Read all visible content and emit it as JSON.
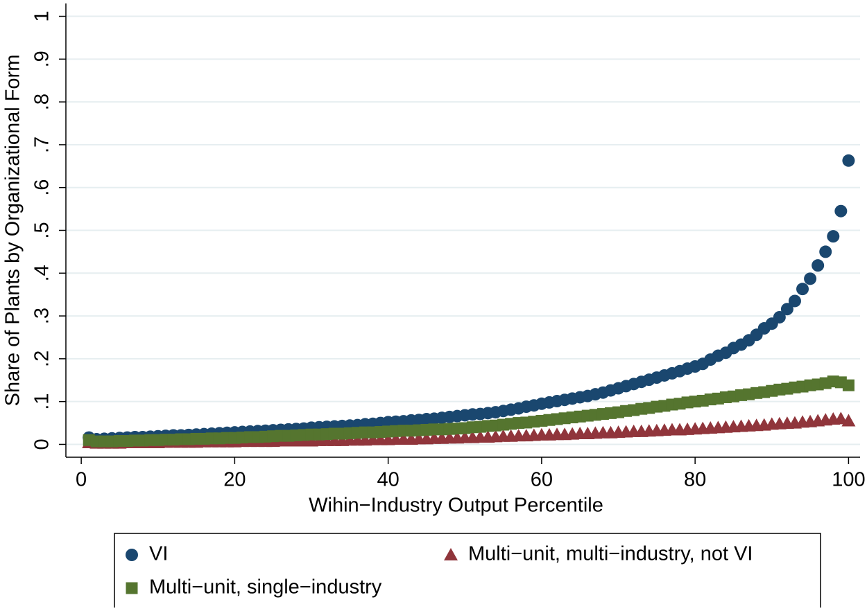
{
  "chart_data": {
    "type": "scatter",
    "ylabel": "Share of Plants by Organizational Form",
    "xlabel": "Wihin−Industry Output Percentile",
    "x": [
      1,
      2,
      3,
      4,
      5,
      6,
      7,
      8,
      9,
      10,
      11,
      12,
      13,
      14,
      15,
      16,
      17,
      18,
      19,
      20,
      21,
      22,
      23,
      24,
      25,
      26,
      27,
      28,
      29,
      30,
      31,
      32,
      33,
      34,
      35,
      36,
      37,
      38,
      39,
      40,
      41,
      42,
      43,
      44,
      45,
      46,
      47,
      48,
      49,
      50,
      51,
      52,
      53,
      54,
      55,
      56,
      57,
      58,
      59,
      60,
      61,
      62,
      63,
      64,
      65,
      66,
      67,
      68,
      69,
      70,
      71,
      72,
      73,
      74,
      75,
      76,
      77,
      78,
      79,
      80,
      81,
      82,
      83,
      84,
      85,
      86,
      87,
      88,
      89,
      90,
      91,
      92,
      93,
      94,
      95,
      96,
      97,
      98,
      99,
      100
    ],
    "series": [
      {
        "name": "VI",
        "color": "#1a476f",
        "marker": "circle",
        "values": [
          0.016,
          0.012,
          0.013,
          0.014,
          0.015,
          0.016,
          0.017,
          0.017,
          0.018,
          0.019,
          0.02,
          0.021,
          0.021,
          0.022,
          0.023,
          0.024,
          0.025,
          0.026,
          0.027,
          0.028,
          0.029,
          0.03,
          0.031,
          0.032,
          0.033,
          0.034,
          0.035,
          0.036,
          0.037,
          0.039,
          0.04,
          0.041,
          0.042,
          0.043,
          0.044,
          0.045,
          0.047,
          0.048,
          0.05,
          0.052,
          0.053,
          0.054,
          0.056,
          0.057,
          0.059,
          0.06,
          0.062,
          0.064,
          0.066,
          0.068,
          0.07,
          0.071,
          0.073,
          0.075,
          0.078,
          0.081,
          0.084,
          0.088,
          0.091,
          0.095,
          0.098,
          0.101,
          0.104,
          0.107,
          0.11,
          0.113,
          0.117,
          0.121,
          0.126,
          0.131,
          0.136,
          0.141,
          0.146,
          0.151,
          0.156,
          0.161,
          0.166,
          0.171,
          0.177,
          0.182,
          0.188,
          0.198,
          0.207,
          0.214,
          0.225,
          0.233,
          0.243,
          0.256,
          0.271,
          0.282,
          0.297,
          0.316,
          0.335,
          0.363,
          0.387,
          0.418,
          0.45,
          0.486,
          0.545,
          0.663
        ]
      },
      {
        "name": "Multi−unit, multi−industry, not VI",
        "color": "#90353b",
        "marker": "triangle",
        "values": [
          0.004,
          0.003,
          0.003,
          0.003,
          0.003,
          0.004,
          0.004,
          0.004,
          0.004,
          0.004,
          0.005,
          0.005,
          0.005,
          0.005,
          0.005,
          0.006,
          0.006,
          0.006,
          0.006,
          0.006,
          0.007,
          0.007,
          0.007,
          0.007,
          0.007,
          0.008,
          0.008,
          0.008,
          0.008,
          0.008,
          0.009,
          0.009,
          0.009,
          0.009,
          0.01,
          0.01,
          0.01,
          0.011,
          0.011,
          0.011,
          0.012,
          0.012,
          0.012,
          0.013,
          0.013,
          0.014,
          0.014,
          0.015,
          0.015,
          0.016,
          0.016,
          0.017,
          0.017,
          0.018,
          0.019,
          0.019,
          0.02,
          0.02,
          0.021,
          0.022,
          0.022,
          0.023,
          0.023,
          0.024,
          0.025,
          0.025,
          0.026,
          0.027,
          0.027,
          0.028,
          0.029,
          0.03,
          0.03,
          0.031,
          0.032,
          0.033,
          0.034,
          0.034,
          0.035,
          0.036,
          0.037,
          0.038,
          0.039,
          0.04,
          0.041,
          0.042,
          0.043,
          0.044,
          0.045,
          0.047,
          0.048,
          0.049,
          0.05,
          0.052,
          0.053,
          0.055,
          0.057,
          0.059,
          0.06,
          0.055
        ]
      },
      {
        "name": "Multi−unit, single−industry",
        "color": "#55752f",
        "marker": "square",
        "values": [
          0.01,
          0.007,
          0.007,
          0.007,
          0.008,
          0.008,
          0.009,
          0.009,
          0.01,
          0.01,
          0.011,
          0.011,
          0.012,
          0.012,
          0.013,
          0.013,
          0.014,
          0.014,
          0.015,
          0.015,
          0.016,
          0.017,
          0.017,
          0.018,
          0.019,
          0.02,
          0.02,
          0.021,
          0.022,
          0.023,
          0.023,
          0.024,
          0.025,
          0.025,
          0.026,
          0.027,
          0.028,
          0.028,
          0.029,
          0.03,
          0.031,
          0.032,
          0.032,
          0.033,
          0.034,
          0.035,
          0.035,
          0.036,
          0.037,
          0.038,
          0.04,
          0.041,
          0.043,
          0.044,
          0.046,
          0.048,
          0.05,
          0.051,
          0.053,
          0.055,
          0.057,
          0.059,
          0.061,
          0.063,
          0.065,
          0.067,
          0.069,
          0.071,
          0.073,
          0.075,
          0.078,
          0.08,
          0.083,
          0.085,
          0.088,
          0.09,
          0.093,
          0.095,
          0.098,
          0.1,
          0.102,
          0.105,
          0.107,
          0.11,
          0.112,
          0.115,
          0.117,
          0.12,
          0.122,
          0.125,
          0.128,
          0.13,
          0.133,
          0.135,
          0.138,
          0.14,
          0.143,
          0.147,
          0.145,
          0.138
        ]
      }
    ],
    "xlim": [
      -2,
      101.5
    ],
    "xticks": [
      0,
      20,
      40,
      60,
      80,
      100
    ],
    "ylim": [
      -0.03,
      1.03
    ],
    "yticks": [
      0,
      {
        "value": 0.1,
        "label": ".1"
      },
      {
        "value": 0.2,
        "label": ".2"
      },
      {
        "value": 0.3,
        "label": ".3"
      },
      {
        "value": 0.4,
        "label": ".4"
      },
      {
        "value": 0.5,
        "label": ".5"
      },
      {
        "value": 0.6,
        "label": ".6"
      },
      {
        "value": 0.7,
        "label": ".7"
      },
      {
        "value": 0.8,
        "label": ".8"
      },
      {
        "value": 0.9,
        "label": ".9"
      },
      1
    ],
    "grid": true,
    "grid_color": "#e6eef0",
    "legend": "bottom"
  }
}
